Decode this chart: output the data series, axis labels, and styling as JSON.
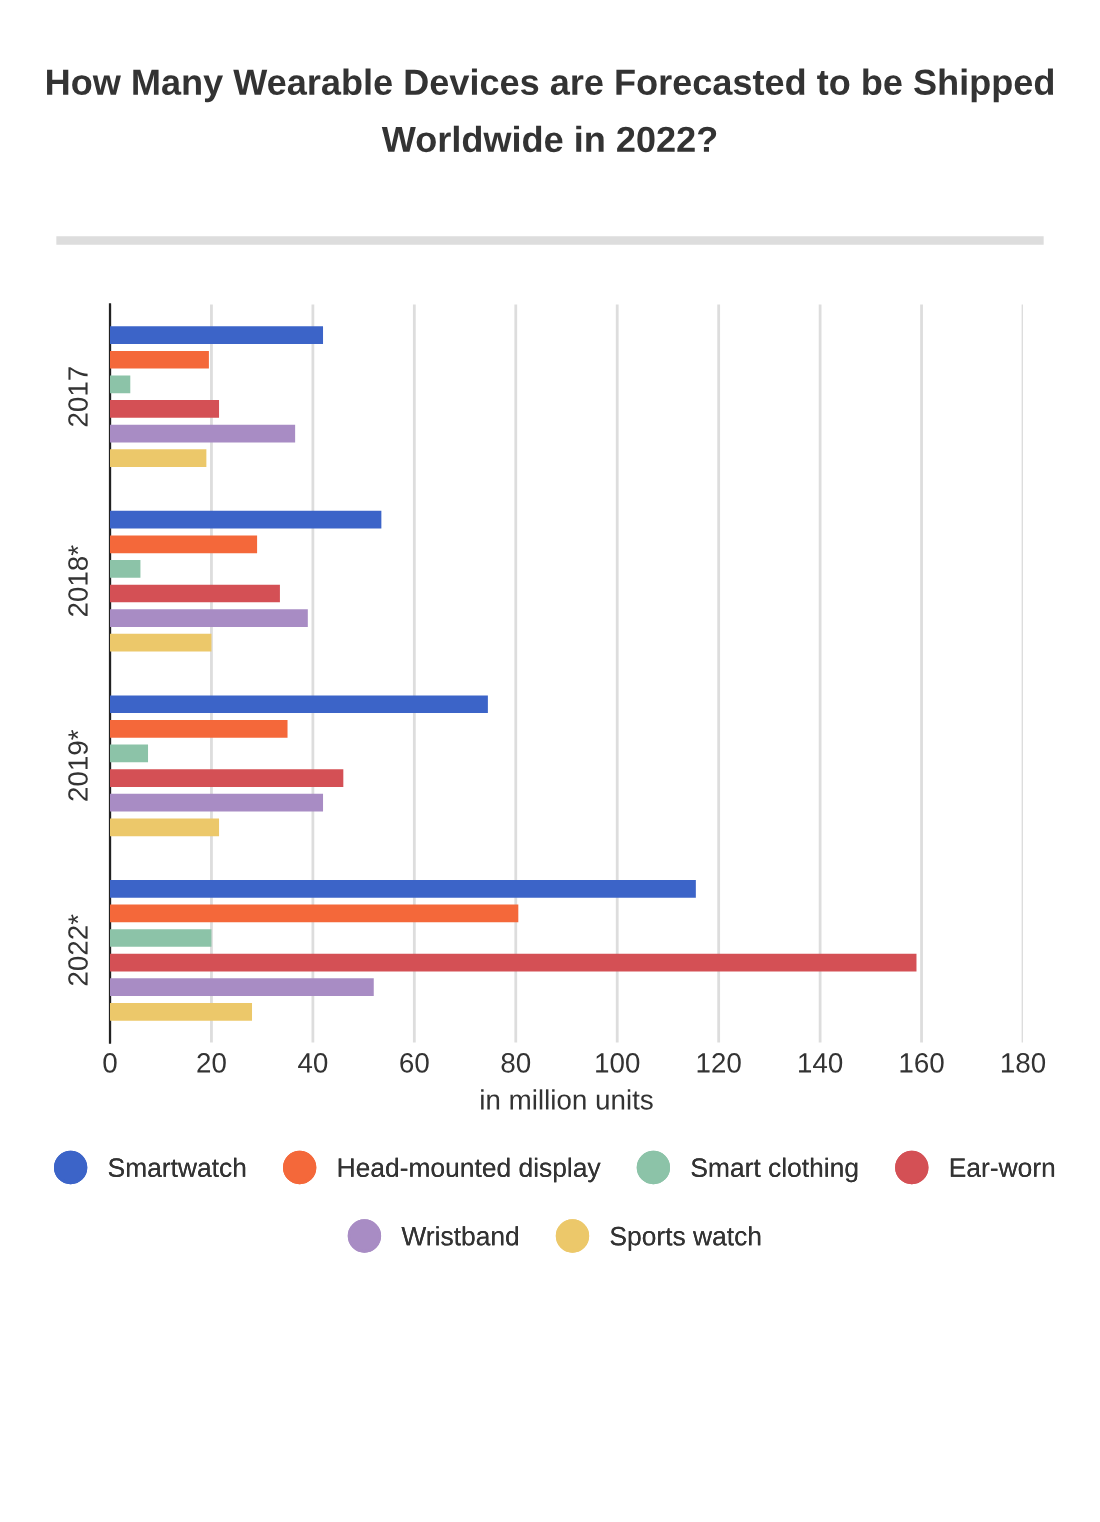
{
  "chart_data": {
    "type": "bar",
    "orientation": "horizontal",
    "title": "How Many Wearable Devices are Forecasted to be Shipped Worldwide in 2022?",
    "xlabel": "in million units",
    "categories": [
      "2017",
      "2018*",
      "2019*",
      "2022*"
    ],
    "series": [
      {
        "name": "Smartwatch",
        "color": "#3c64c8",
        "values": [
          42,
          53.5,
          74.5,
          115.5
        ]
      },
      {
        "name": "Head-mounted display",
        "color": "#f4683a",
        "values": [
          19.5,
          29,
          35,
          80.5
        ]
      },
      {
        "name": "Smart clothing",
        "color": "#8cc3a8",
        "values": [
          4,
          6,
          7.5,
          20
        ]
      },
      {
        "name": "Ear-worn",
        "color": "#d45055",
        "values": [
          21.5,
          33.5,
          46,
          159
        ]
      },
      {
        "name": "Wristband",
        "color": "#a88cc4",
        "values": [
          36.5,
          39,
          42,
          52
        ]
      },
      {
        "name": "Sports watch",
        "color": "#ecc86a",
        "values": [
          19,
          20,
          21.5,
          28
        ]
      }
    ],
    "xlim": [
      0,
      180
    ],
    "xticks": [
      0,
      20,
      40,
      60,
      80,
      100,
      120,
      140,
      160,
      180
    ],
    "grid": "x",
    "legend": "bottom"
  }
}
